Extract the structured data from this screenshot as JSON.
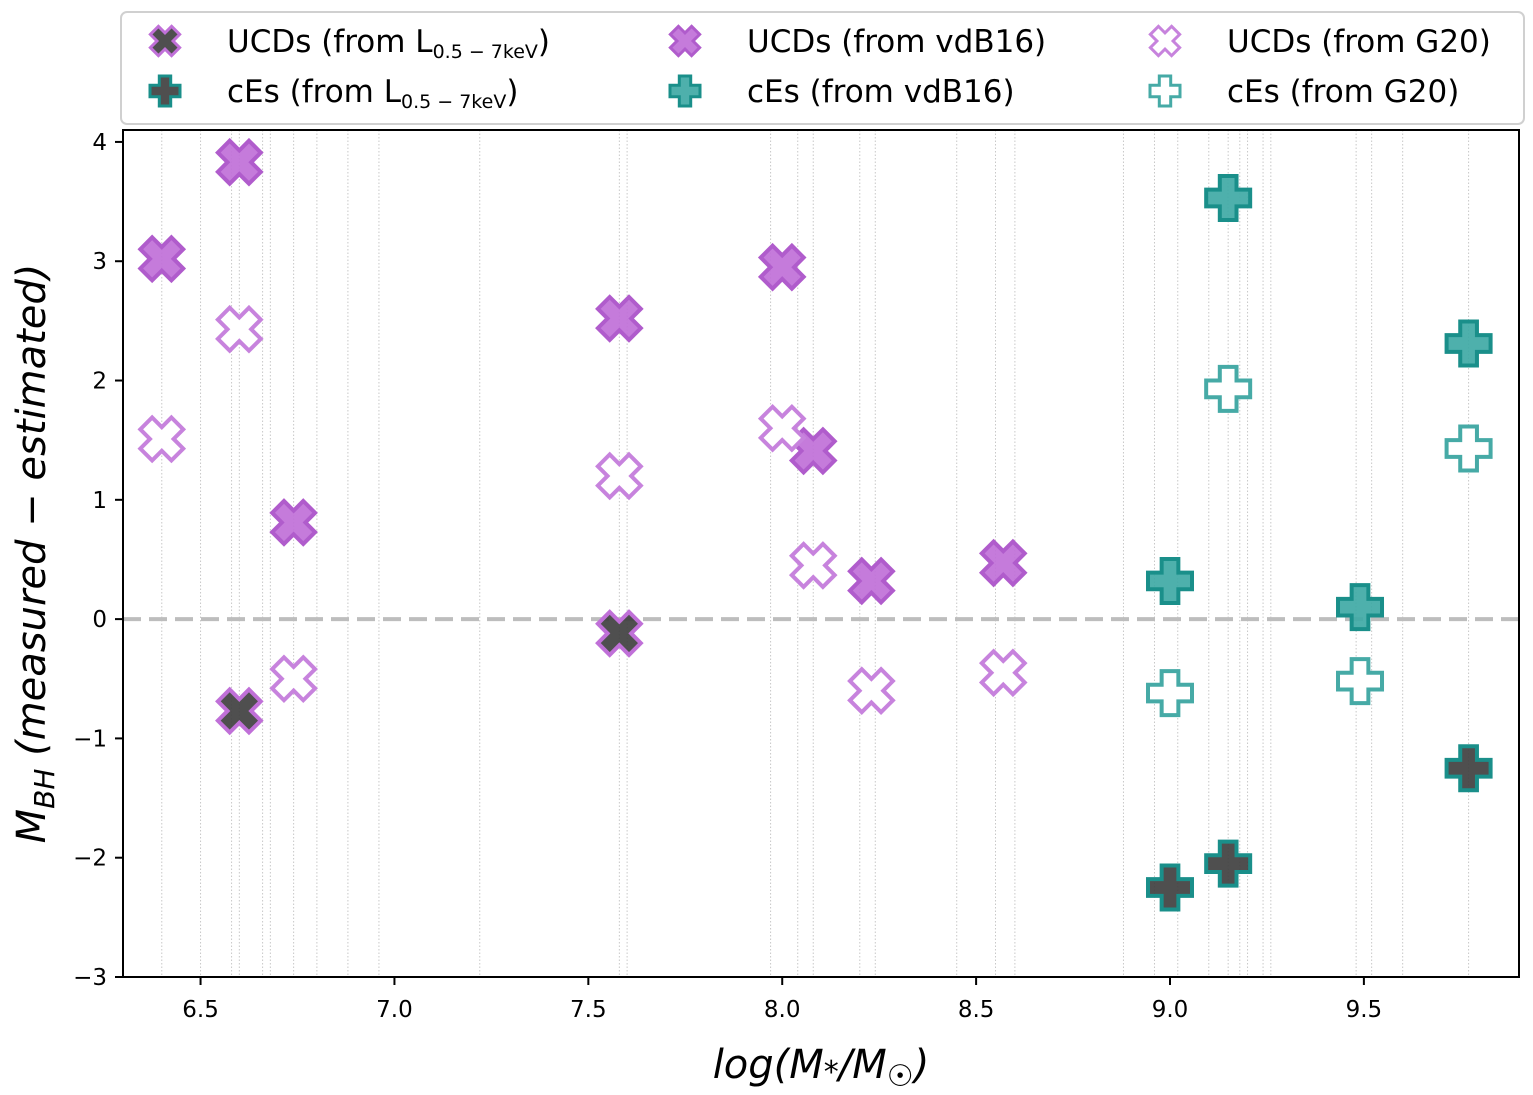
{
  "chart_data": {
    "type": "scatter",
    "title": "",
    "xlabel": "log(M*/M☉)",
    "ylabel": "M_BH (measured − estimated)",
    "xlim": [
      6.3,
      9.9
    ],
    "ylim": [
      -3,
      4.1
    ],
    "xticks": [
      6.5,
      7.0,
      7.5,
      8.0,
      8.5,
      9.0,
      9.5
    ],
    "xtick_labels": [
      "6.5",
      "7.0",
      "7.5",
      "8.0",
      "8.5",
      "9.0",
      "9.5"
    ],
    "yticks": [
      4,
      3,
      2,
      1,
      0,
      -1,
      -2,
      -3
    ],
    "ytick_labels": [
      "4",
      "3",
      "2",
      "1",
      "0",
      "−1",
      "−2",
      "−3"
    ],
    "zero_line": 0,
    "vertical_guides": [
      6.4,
      6.5,
      6.58,
      6.6,
      6.66,
      6.68,
      6.74,
      6.8,
      6.88,
      6.96,
      7.22,
      7.58,
      7.6,
      7.97,
      8.04,
      8.08,
      8.2,
      8.24,
      8.45,
      8.55,
      8.6,
      8.88,
      8.96,
      9.02,
      9.1,
      9.15,
      9.18,
      9.2,
      9.24,
      9.26,
      9.48,
      9.52,
      9.6,
      9.77
    ],
    "legend_position": "upper center, outside plot, 3 columns",
    "legend": [
      {
        "prefix": "UCDs (from L",
        "sub": "0.5 − 7keV",
        "suffix": ")"
      },
      {
        "prefix": "cEs (from L",
        "sub": "0.5 − 7keV",
        "suffix": ")"
      },
      {
        "prefix": "UCDs (from vdB16)",
        "sub": "",
        "suffix": ""
      },
      {
        "prefix": "cEs (from vdB16)",
        "sub": "",
        "suffix": ""
      },
      {
        "prefix": "UCDs (from G20)",
        "sub": "",
        "suffix": ""
      },
      {
        "prefix": "cEs (from G20)",
        "sub": "",
        "suffix": ""
      }
    ],
    "series": [
      {
        "name": "UCDs (from L0.5−7keV)",
        "marker": "x",
        "fill": "#404040",
        "edge": "#c070d8",
        "points": [
          [
            6.6,
            -0.77
          ],
          [
            7.58,
            -0.12
          ]
        ]
      },
      {
        "name": "cEs (from L0.5−7keV)",
        "marker": "plus",
        "fill": "#404040",
        "edge": "#1a8f8a",
        "points": [
          [
            9.0,
            -2.25
          ],
          [
            9.15,
            -2.05
          ],
          [
            9.77,
            -1.25
          ]
        ]
      },
      {
        "name": "UCDs (from vdB16)",
        "marker": "x",
        "fill": "#c070d8",
        "edge": "#b05ccc",
        "points": [
          [
            6.4,
            3.02
          ],
          [
            6.6,
            3.83
          ],
          [
            6.74,
            0.81
          ],
          [
            7.58,
            2.52
          ],
          [
            8.0,
            2.95
          ],
          [
            8.08,
            1.41
          ],
          [
            8.23,
            0.32
          ],
          [
            8.57,
            0.47
          ]
        ]
      },
      {
        "name": "cEs (from vdB16)",
        "marker": "plus",
        "fill": "#3fa9a5",
        "edge": "#1a8f8a",
        "points": [
          [
            9.0,
            0.32
          ],
          [
            9.15,
            3.53
          ],
          [
            9.49,
            0.1
          ],
          [
            9.77,
            2.31
          ]
        ]
      },
      {
        "name": "UCDs (from G20)",
        "marker": "x",
        "fill": "#ffffff",
        "edge": "#c783dd",
        "points": [
          [
            6.4,
            1.51
          ],
          [
            6.6,
            2.43
          ],
          [
            6.74,
            -0.5
          ],
          [
            7.58,
            1.2
          ],
          [
            8.0,
            1.6
          ],
          [
            8.08,
            0.45
          ],
          [
            8.23,
            -0.6
          ],
          [
            8.57,
            -0.45
          ]
        ]
      },
      {
        "name": "cEs (from G20)",
        "marker": "plus",
        "fill": "#ffffff",
        "edge": "#46aaa6",
        "points": [
          [
            9.0,
            -0.62
          ],
          [
            9.15,
            1.93
          ],
          [
            9.49,
            -0.52
          ],
          [
            9.77,
            1.43
          ]
        ]
      }
    ]
  },
  "colors": {
    "axis": "#000000",
    "zero_line": "#bdbdbd",
    "guide": "#c8c8c8",
    "legend_border": "#d0d0d0"
  }
}
